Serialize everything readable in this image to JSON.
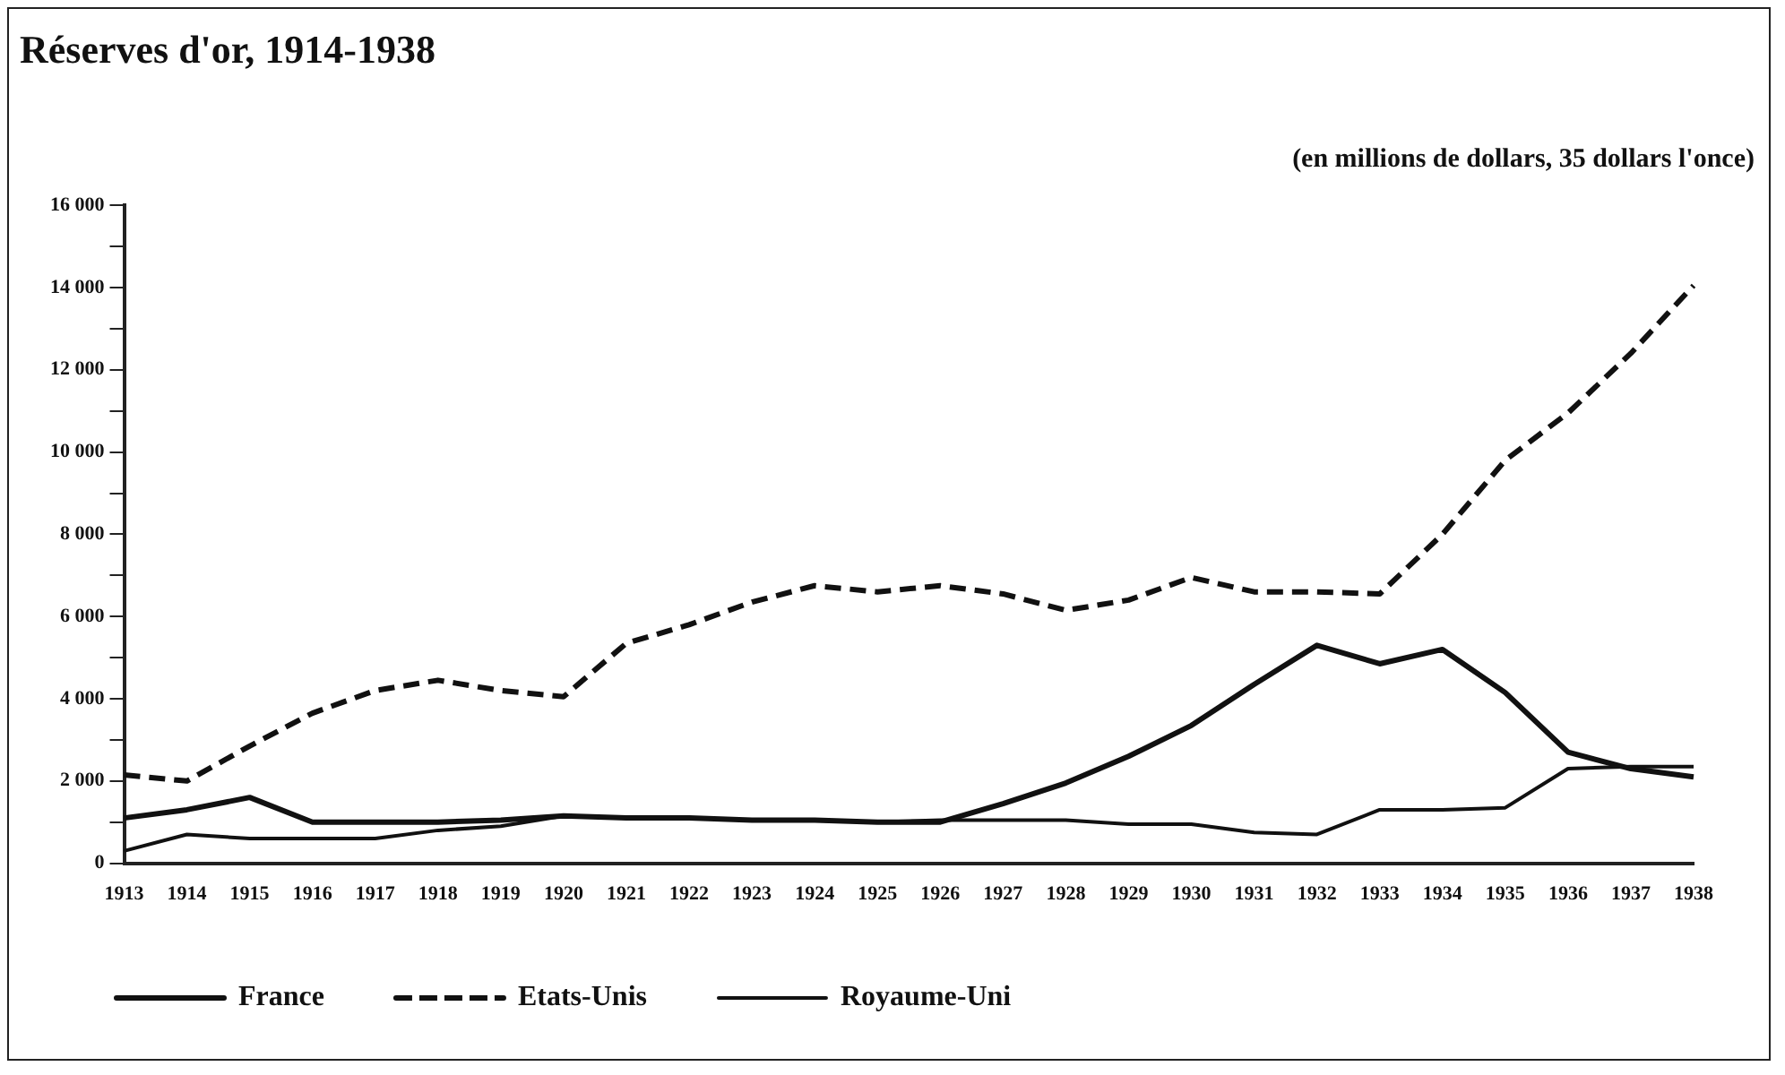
{
  "chart_data": {
    "type": "line",
    "title": "Réserves d'or, 1914-1938",
    "subtitle": "(en millions de dollars, 35 dollars l'once)",
    "categories": [
      "1913",
      "1914",
      "1915",
      "1916",
      "1917",
      "1918",
      "1919",
      "1920",
      "1921",
      "1922",
      "1923",
      "1924",
      "1925",
      "1926",
      "1927",
      "1928",
      "1929",
      "1930",
      "1931",
      "1932",
      "1933",
      "1934",
      "1935",
      "1936",
      "1937",
      "1938"
    ],
    "series": [
      {
        "name": "France",
        "color": "#111111",
        "line_style": "solid",
        "values": [
          1100,
          1300,
          1600,
          1000,
          1000,
          1000,
          1050,
          1150,
          1100,
          1100,
          1050,
          1050,
          1000,
          1000,
          1450,
          1950,
          2600,
          3350,
          4350,
          5300,
          4850,
          5200,
          4150,
          2700,
          2300,
          2100
        ]
      },
      {
        "name": "Etats-Unis",
        "color": "#111111",
        "line_style": "dashed",
        "values": [
          2150,
          2000,
          2850,
          3650,
          4200,
          4450,
          4200,
          4050,
          5350,
          5800,
          6350,
          6750,
          6600,
          6750,
          6550,
          6150,
          6400,
          6950,
          6600,
          6600,
          6550,
          8000,
          9800,
          10950,
          12400,
          14050
        ]
      },
      {
        "name": "Royaume-Uni",
        "color": "#111111",
        "line_style": "solid",
        "values": [
          300,
          700,
          600,
          600,
          600,
          800,
          900,
          1150,
          1100,
          1100,
          1050,
          1050,
          1000,
          1050,
          1050,
          1050,
          950,
          950,
          750,
          700,
          1300,
          1300,
          1350,
          2300,
          2350,
          2350
        ]
      }
    ],
    "ylim": [
      0,
      16000
    ],
    "yticks": [
      0,
      {
        "value": 1000,
        "label": null
      },
      {
        "value": 2000,
        "label": "2 000"
      },
      {
        "value": 3000,
        "label": null
      },
      {
        "value": 4000,
        "label": "4 000"
      },
      {
        "value": 5000,
        "label": null
      },
      {
        "value": 6000,
        "label": "6 000"
      },
      {
        "value": 7000,
        "label": null
      },
      {
        "value": 8000,
        "label": "8 000"
      },
      {
        "value": 9000,
        "label": null
      },
      {
        "value": 10000,
        "label": "10 000"
      },
      {
        "value": 11000,
        "label": null
      },
      {
        "value": 12000,
        "label": "12 000"
      },
      {
        "value": 13000,
        "label": null
      },
      {
        "value": 14000,
        "label": "14 000"
      },
      {
        "value": 15000,
        "label": null
      },
      {
        "value": 16000,
        "label": "16 000"
      }
    ],
    "grid": false,
    "legend": "bottom left",
    "marker": "none"
  }
}
